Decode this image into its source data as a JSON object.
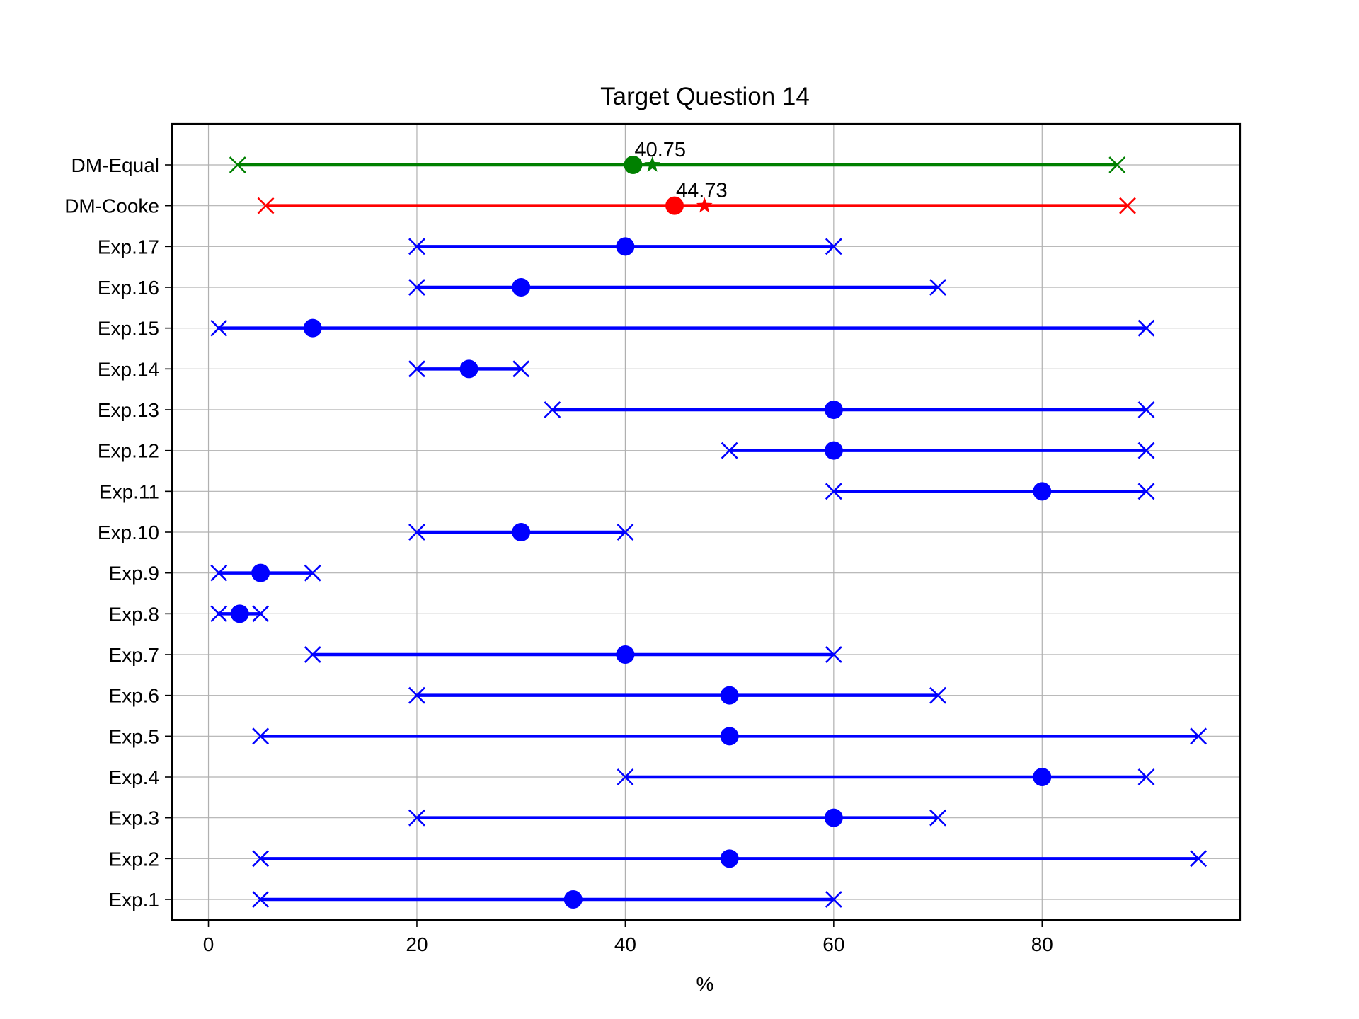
{
  "chart_data": {
    "type": "interval",
    "title": "Target Question 14",
    "xlabel": "%",
    "ylabel": "",
    "xlim": [
      -3.5,
      99
    ],
    "xticks": [
      0,
      20,
      40,
      60,
      80
    ],
    "grid": true,
    "legend": "none",
    "colors": {
      "experts": "#0000ff",
      "cooke": "#ff0000",
      "equal": "#008000"
    },
    "rows": [
      {
        "label": "DM-Equal",
        "low": 2.8,
        "median": 40.75,
        "high": 87.2,
        "mean": 42.6,
        "annotation": "40.75",
        "color_key": "equal"
      },
      {
        "label": "DM-Cooke",
        "low": 5.5,
        "median": 44.73,
        "high": 88.2,
        "mean": 47.6,
        "annotation": "44.73",
        "color_key": "cooke"
      },
      {
        "label": "Exp.17",
        "low": 20,
        "median": 40,
        "high": 60,
        "color_key": "experts"
      },
      {
        "label": "Exp.16",
        "low": 20,
        "median": 30,
        "high": 70,
        "color_key": "experts"
      },
      {
        "label": "Exp.15",
        "low": 1,
        "median": 10,
        "high": 90,
        "color_key": "experts"
      },
      {
        "label": "Exp.14",
        "low": 20,
        "median": 25,
        "high": 30,
        "color_key": "experts"
      },
      {
        "label": "Exp.13",
        "low": 33,
        "median": 60,
        "high": 90,
        "color_key": "experts"
      },
      {
        "label": "Exp.12",
        "low": 50,
        "median": 60,
        "high": 90,
        "color_key": "experts"
      },
      {
        "label": "Exp.11",
        "low": 60,
        "median": 80,
        "high": 90,
        "color_key": "experts"
      },
      {
        "label": "Exp.10",
        "low": 20,
        "median": 30,
        "high": 40,
        "color_key": "experts"
      },
      {
        "label": "Exp.9",
        "low": 1,
        "median": 5,
        "high": 10,
        "color_key": "experts"
      },
      {
        "label": "Exp.8",
        "low": 1,
        "median": 3,
        "high": 5,
        "color_key": "experts"
      },
      {
        "label": "Exp.7",
        "low": 10,
        "median": 40,
        "high": 60,
        "color_key": "experts"
      },
      {
        "label": "Exp.6",
        "low": 20,
        "median": 50,
        "high": 70,
        "color_key": "experts"
      },
      {
        "label": "Exp.5",
        "low": 5,
        "median": 50,
        "high": 95,
        "color_key": "experts"
      },
      {
        "label": "Exp.4",
        "low": 40,
        "median": 80,
        "high": 90,
        "color_key": "experts"
      },
      {
        "label": "Exp.3",
        "low": 20,
        "median": 60,
        "high": 70,
        "color_key": "experts"
      },
      {
        "label": "Exp.2",
        "low": 5,
        "median": 50,
        "high": 95,
        "color_key": "experts"
      },
      {
        "label": "Exp.1",
        "low": 5,
        "median": 35,
        "high": 60,
        "color_key": "experts"
      }
    ]
  }
}
